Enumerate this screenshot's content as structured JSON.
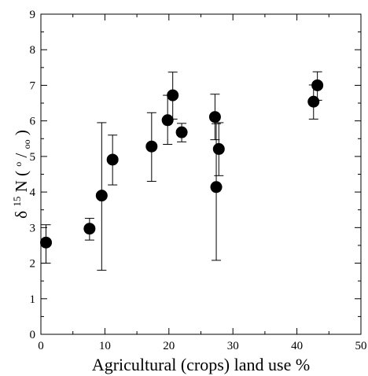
{
  "chart_data": {
    "type": "scatter",
    "title": "",
    "xlabel": "Agricultural (crops) land use %",
    "ylabel": {
      "prefix": "δ",
      "superscript": "15",
      "element": "N",
      "unit_open": "(",
      "unit_superscript": "o",
      "unit_slash": "/",
      "unit_subscript": "oo",
      "unit_close": ")"
    },
    "xlim": [
      0,
      50
    ],
    "ylim": [
      0,
      9
    ],
    "xticks": [
      "0",
      "10",
      "20",
      "30",
      "40",
      "50"
    ],
    "yticks": [
      "0",
      "1",
      "2",
      "3",
      "4",
      "5",
      "6",
      "7",
      "8",
      "9"
    ],
    "grid": false,
    "legend": "none",
    "marker_color": "#000000",
    "points": [
      {
        "x": 0.8,
        "y": 2.58,
        "err_low": 0.58,
        "err_high": 0.5
      },
      {
        "x": 7.6,
        "y": 2.97,
        "err_low": 0.32,
        "err_high": 0.29
      },
      {
        "x": 9.5,
        "y": 3.9,
        "err_low": 2.1,
        "err_high": 2.05
      },
      {
        "x": 11.2,
        "y": 4.91,
        "err_low": 0.71,
        "err_high": 0.69
      },
      {
        "x": 17.3,
        "y": 5.28,
        "err_low": 0.98,
        "err_high": 0.95
      },
      {
        "x": 19.8,
        "y": 6.02,
        "err_low": 0.68,
        "err_high": 0.7
      },
      {
        "x": 20.6,
        "y": 6.72,
        "err_low": 0.67,
        "err_high": 0.65
      },
      {
        "x": 22.0,
        "y": 5.68,
        "err_low": 0.27,
        "err_high": 0.25
      },
      {
        "x": 27.2,
        "y": 6.11,
        "err_low": 0.64,
        "err_high": 0.64
      },
      {
        "x": 27.4,
        "y": 4.14,
        "err_low": 2.06,
        "err_high": 1.78
      },
      {
        "x": 27.8,
        "y": 5.21,
        "err_low": 0.75,
        "err_high": 0.74
      },
      {
        "x": 42.6,
        "y": 6.54,
        "err_low": 0.49,
        "err_high": 0.47
      },
      {
        "x": 43.2,
        "y": 7.0,
        "err_low": 0.42,
        "err_high": 0.38
      }
    ]
  }
}
